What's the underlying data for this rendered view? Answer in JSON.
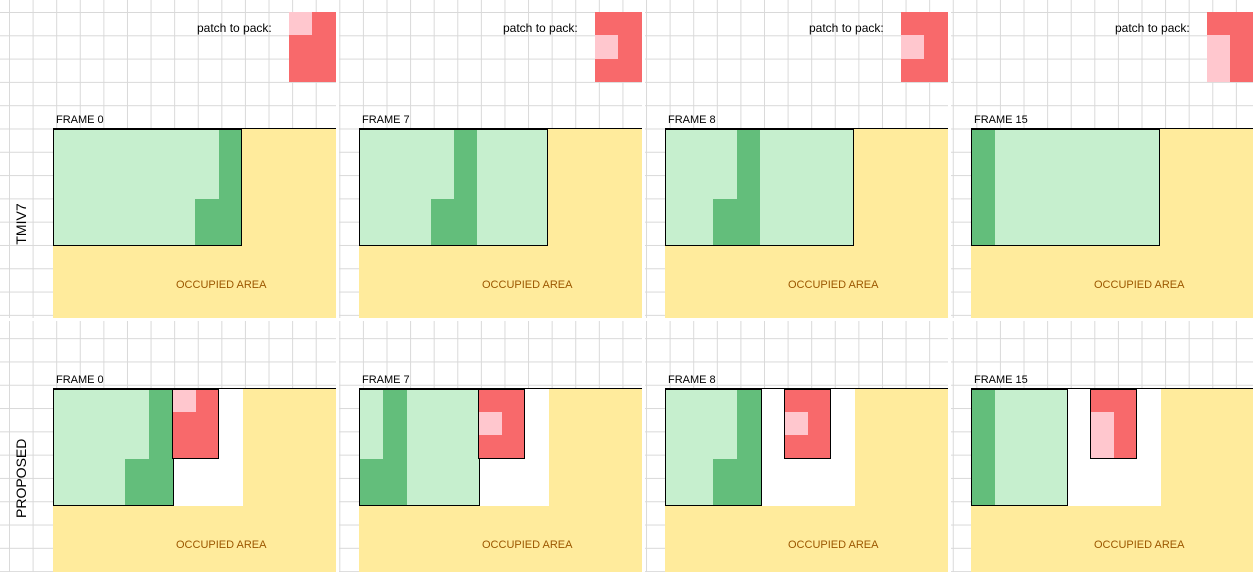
{
  "patch_label": "patch to pack:",
  "frames": [
    "FRAME 0",
    "FRAME 7",
    "FRAME 8",
    "FRAME 15"
  ],
  "occupied_label": "OCCUPIED AREA",
  "rows": [
    {
      "label": "TMIV7"
    },
    {
      "label": "PROPOSED"
    }
  ],
  "colors": {
    "grid": "#d9d9d9",
    "occupied": "#ffeb9c",
    "occupied_text": "#9c5700",
    "patch_light_green": "#c6efce",
    "patch_dark_green": "#63be7b",
    "patch_red": "#f8696b",
    "patch_pink": "#ffc7ce"
  }
}
